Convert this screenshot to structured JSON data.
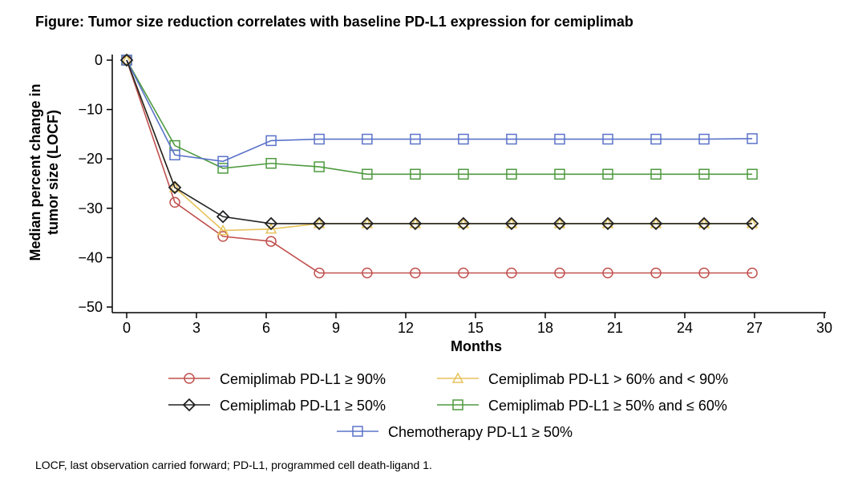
{
  "chart_data": {
    "type": "line",
    "title": "Figure: Tumor size reduction correlates with baseline PD-L1 expression for cemiplimab",
    "xlabel": "Months",
    "ylabel": "Median percent change in tumor size (LOCF)",
    "xlim": [
      0,
      30
    ],
    "ylim": [
      -50,
      0
    ],
    "xticks": [
      0,
      3,
      6,
      9,
      12,
      15,
      18,
      21,
      24,
      27,
      30
    ],
    "yticks": [
      0,
      -10,
      -20,
      -30,
      -40,
      -50
    ],
    "ytick_labels": [
      "0",
      "−10",
      "−20",
      "−30",
      "−40",
      "−50"
    ],
    "grid": false,
    "legend_position": "bottom",
    "x": [
      0,
      2.07,
      4.14,
      6.21,
      8.28,
      10.34,
      12.41,
      14.48,
      16.55,
      18.62,
      20.69,
      22.76,
      24.83,
      26.9
    ],
    "series": [
      {
        "name": "Cemiplimab PD-L1 ≥ 90%",
        "color": "#c0504d",
        "marker": "circle",
        "values": [
          0,
          -28.8,
          -35.7,
          -36.7,
          -43.1,
          -43.1,
          -43.1,
          -43.1,
          -43.1,
          -43.1,
          -43.1,
          -43.1,
          -43.1,
          -43.1
        ]
      },
      {
        "name": "Cemiplimab PD-L1 > 60% and < 90%",
        "color": "#e6c25a",
        "marker": "triangle",
        "values": [
          0,
          -25.8,
          -34.5,
          -34.2,
          -33.1,
          -33.1,
          -33.1,
          -33.1,
          -33.1,
          -33.1,
          -33.1,
          -33.1,
          -33.1,
          -33.1
        ]
      },
      {
        "name": "Cemiplimab PD-L1 ≥ 50%",
        "color": "#222222",
        "marker": "diamond",
        "values": [
          0,
          -25.8,
          -31.7,
          -33.1,
          -33.1,
          -33.1,
          -33.1,
          -33.1,
          -33.1,
          -33.1,
          -33.1,
          -33.1,
          -33.1,
          -33.1
        ]
      },
      {
        "name": "Cemiplimab PD-L1 ≥ 50% and ≤ 60%",
        "color": "#4e9a3f",
        "marker": "square",
        "values": [
          0,
          -17.3,
          -21.9,
          -20.9,
          -21.6,
          -23.1,
          -23.1,
          -23.1,
          -23.1,
          -23.1,
          -23.1,
          -23.1,
          -23.1,
          -23.1
        ]
      },
      {
        "name": "Chemotherapy PD-L1 ≥ 50%",
        "color": "#5b73c9",
        "marker": "square",
        "values": [
          0,
          -19.2,
          -20.5,
          -16.3,
          -16.0,
          -16.0,
          -16.0,
          -16.0,
          -16.0,
          -16.0,
          -16.0,
          -16.0,
          -16.0,
          -15.9
        ]
      }
    ],
    "footnote": "LOCF, last observation carried forward; PD-L1, programmed cell death-ligand 1."
  }
}
